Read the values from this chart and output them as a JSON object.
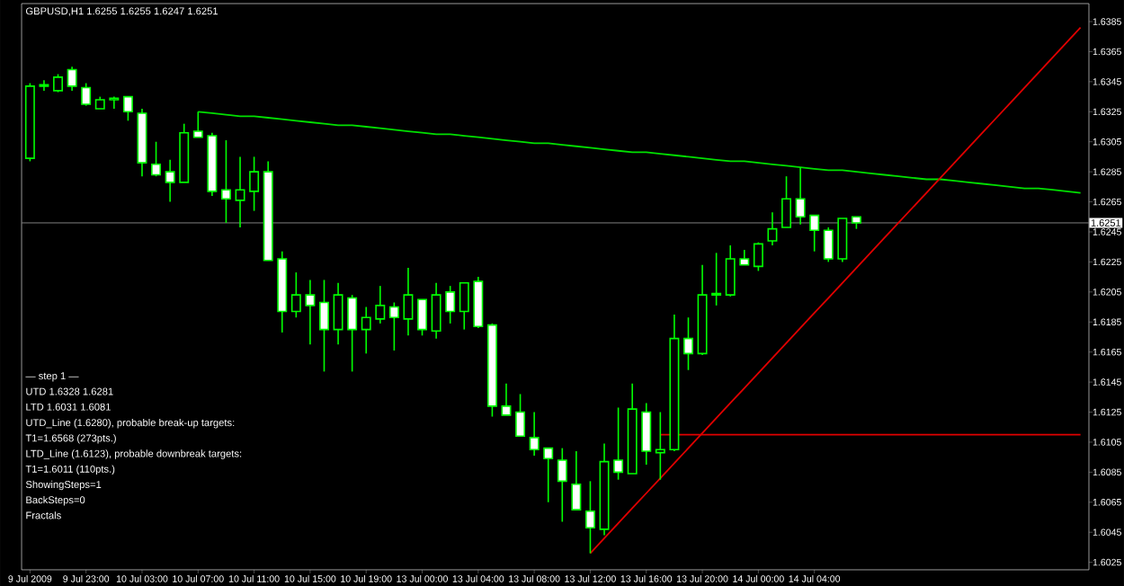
{
  "chart_data": {
    "type": "candlestick",
    "title": "GBPUSD,H1  1.6255 1.6255 1.6247 1.6251",
    "annotations": [
      "— step 1 —",
      "UTD 1.6328 1.6281",
      "LTD 1.6031 1.6081",
      "UTD_Line (1.6280), probable break-up targets:",
      "T1=1.6568 (273pts.)",
      "LTD_Line (1.6123), probable downbreak targets:",
      "T1=1.6011 (110pts.)",
      "ShowingSteps=1",
      "BackSteps=0",
      "Fractals"
    ],
    "categories": [
      "9 Jul 2009",
      null,
      null,
      null,
      "9 Jul 23:00",
      null,
      null,
      null,
      "10 Jul 03:00",
      null,
      null,
      null,
      "10 Jul 07:00",
      null,
      null,
      null,
      "10 Jul 11:00",
      null,
      null,
      null,
      "10 Jul 15:00",
      null,
      null,
      null,
      "10 Jul 19:00",
      null,
      null,
      null,
      "13 Jul 00:00",
      null,
      null,
      null,
      "13 Jul 04:00",
      null,
      null,
      null,
      "13 Jul 08:00",
      null,
      null,
      null,
      "13 Jul 12:00",
      null,
      null,
      null,
      "13 Jul 16:00",
      null,
      null,
      null,
      "13 Jul 20:00",
      null,
      null,
      null,
      "14 Jul 00:00",
      null,
      null,
      null,
      "14 Jul 04:00",
      null,
      null,
      null,
      null,
      null,
      null,
      null,
      null,
      null,
      null,
      null,
      null,
      null,
      null,
      null,
      null,
      null,
      null,
      null
    ],
    "ohlc": [
      [
        1.6294,
        1.6344,
        1.6292,
        1.6342
      ],
      [
        1.6342,
        1.6346,
        1.6339,
        1.6343
      ],
      [
        1.6339,
        1.635,
        1.6338,
        1.6348
      ],
      [
        1.6353,
        1.6355,
        1.6339,
        1.6342
      ],
      [
        1.6341,
        1.6344,
        1.6329,
        1.633
      ],
      [
        1.6327,
        1.6335,
        1.6327,
        1.6333
      ],
      [
        1.6333,
        1.6335,
        1.6327,
        1.6334
      ],
      [
        1.6335,
        1.6335,
        1.6319,
        1.6325
      ],
      [
        1.6324,
        1.6327,
        1.6282,
        1.6291
      ],
      [
        1.629,
        1.6305,
        1.6282,
        1.6283
      ],
      [
        1.6285,
        1.6293,
        1.6265,
        1.6278
      ],
      [
        1.6278,
        1.6317,
        1.6278,
        1.6311
      ],
      [
        1.6312,
        1.6325,
        1.6308,
        1.6308
      ],
      [
        1.6309,
        1.6311,
        1.6269,
        1.6272
      ],
      [
        1.6273,
        1.6306,
        1.6251,
        1.6267
      ],
      [
        1.6266,
        1.6295,
        1.6248,
        1.6273
      ],
      [
        1.6272,
        1.6295,
        1.6259,
        1.6285
      ],
      [
        1.6285,
        1.6292,
        1.6226,
        1.6226
      ],
      [
        1.6227,
        1.6232,
        1.6178,
        1.6192
      ],
      [
        1.6192,
        1.6218,
        1.6188,
        1.6203
      ],
      [
        1.6203,
        1.6213,
        1.617,
        1.6196
      ],
      [
        1.6198,
        1.6213,
        1.6152,
        1.618
      ],
      [
        1.618,
        1.6211,
        1.617,
        1.6203
      ],
      [
        1.6201,
        1.6203,
        1.6152,
        1.618
      ],
      [
        1.618,
        1.6195,
        1.6164,
        1.6188
      ],
      [
        1.6187,
        1.6209,
        1.6184,
        1.6196
      ],
      [
        1.6195,
        1.6198,
        1.6166,
        1.6188
      ],
      [
        1.6187,
        1.6221,
        1.6176,
        1.6203
      ],
      [
        1.62,
        1.62,
        1.6176,
        1.618
      ],
      [
        1.6179,
        1.6211,
        1.6174,
        1.6203
      ],
      [
        1.6205,
        1.6209,
        1.6184,
        1.6192
      ],
      [
        1.6192,
        1.6211,
        1.618,
        1.6211
      ],
      [
        1.6212,
        1.6215,
        1.6181,
        1.6182
      ],
      [
        1.6183,
        1.6184,
        1.6122,
        1.6129
      ],
      [
        1.6129,
        1.6144,
        1.6123,
        1.6123
      ],
      [
        1.6125,
        1.6137,
        1.6109,
        1.6109
      ],
      [
        1.6108,
        1.6125,
        1.6096,
        1.61
      ],
      [
        1.6101,
        1.6101,
        1.6065,
        1.6094
      ],
      [
        1.6093,
        1.6101,
        1.6052,
        1.6079
      ],
      [
        1.6077,
        1.6099,
        1.606,
        1.606
      ],
      [
        1.6059,
        1.6079,
        1.6031,
        1.6048
      ],
      [
        1.6047,
        1.6104,
        1.6043,
        1.6092
      ],
      [
        1.6093,
        1.6128,
        1.608,
        1.6085
      ],
      [
        1.6084,
        1.6144,
        1.6084,
        1.6127
      ],
      [
        1.6125,
        1.6131,
        1.609,
        1.6099
      ],
      [
        1.6098,
        1.6125,
        1.608,
        1.61
      ],
      [
        1.61,
        1.619,
        1.6099,
        1.6174
      ],
      [
        1.6174,
        1.6188,
        1.6153,
        1.6164
      ],
      [
        1.6164,
        1.6223,
        1.6163,
        1.6203
      ],
      [
        1.6203,
        1.6231,
        1.6196,
        1.6204
      ],
      [
        1.6203,
        1.6236,
        1.6202,
        1.6227
      ],
      [
        1.6227,
        1.6233,
        1.6223,
        1.6223
      ],
      [
        1.6222,
        1.6238,
        1.6219,
        1.6237
      ],
      [
        1.6239,
        1.6258,
        1.6236,
        1.6247
      ],
      [
        1.6248,
        1.6282,
        1.6248,
        1.6267
      ],
      [
        1.6267,
        1.6288,
        1.625,
        1.6255
      ],
      [
        1.6256,
        1.6256,
        1.6232,
        1.6246
      ],
      [
        1.6246,
        1.6248,
        1.6225,
        1.6227
      ],
      [
        1.6227,
        1.6254,
        1.6225,
        1.6254
      ],
      [
        1.6255,
        1.6255,
        1.6247,
        1.6251
      ],
      null,
      null,
      null,
      null,
      null,
      null,
      null,
      null,
      null,
      null,
      null,
      null,
      null,
      null,
      null,
      null
    ],
    "color": "#00ff00",
    "colors": [
      "#000000",
      "#000000",
      "#000000",
      "#ffffff",
      "#ffffff",
      "#000000",
      "#000000",
      "#ffffff",
      "#ffffff",
      "#ffffff",
      "#ffffff",
      "#000000",
      "#ffffff",
      "#ffffff",
      "#ffffff",
      "#000000",
      "#000000",
      "#ffffff",
      "#ffffff",
      "#000000",
      "#ffffff",
      "#ffffff",
      "#000000",
      "#ffffff",
      "#000000",
      "#000000",
      "#ffffff",
      "#000000",
      "#ffffff",
      "#000000",
      "#ffffff",
      "#000000",
      "#ffffff",
      "#ffffff",
      "#ffffff",
      "#ffffff",
      "#ffffff",
      "#ffffff",
      "#ffffff",
      "#ffffff",
      "#ffffff",
      "#000000",
      "#ffffff",
      "#000000",
      "#ffffff",
      "#000000",
      "#000000",
      "#ffffff",
      "#000000",
      "#000000",
      "#000000",
      "#ffffff",
      "#000000",
      "#000000",
      "#000000",
      "#ffffff",
      "#ffffff",
      "#ffffff",
      "#000000",
      "#ffffff",
      null,
      null,
      null,
      null,
      null,
      null,
      null,
      null,
      null,
      null,
      null,
      null,
      null,
      null,
      null,
      null
    ],
    "series": [
      {
        "type": "line",
        "color": "#00e000",
        "values": [
          null,
          null,
          null,
          null,
          null,
          null,
          null,
          null,
          null,
          null,
          null,
          null,
          1.6325,
          1.6324,
          1.6323,
          1.6322,
          1.6322,
          1.6321,
          1.632,
          1.6319,
          1.6318,
          1.6317,
          1.6316,
          1.6316,
          1.6315,
          1.6314,
          1.6313,
          1.6312,
          1.6311,
          1.631,
          1.631,
          1.6309,
          1.6308,
          1.6307,
          1.6306,
          1.6305,
          1.6304,
          1.6304,
          1.6303,
          1.6302,
          1.6301,
          1.63,
          1.6299,
          1.6298,
          1.6298,
          1.6297,
          1.6296,
          1.6295,
          1.6294,
          1.6293,
          1.6292,
          1.6292,
          1.6291,
          1.629,
          1.6289,
          1.6288,
          1.6287,
          1.6286,
          1.6286,
          1.6285,
          1.6284,
          1.6283,
          1.6282,
          1.6281,
          1.628,
          1.628,
          1.6279,
          1.6278,
          1.6277,
          1.6276,
          1.6275,
          1.6274,
          1.6274,
          1.6273,
          1.6272,
          1.6271
        ]
      },
      {
        "type": "line",
        "color": "#e00000",
        "values": [
          null,
          null,
          null,
          null,
          null,
          null,
          null,
          null,
          null,
          null,
          null,
          null,
          null,
          null,
          null,
          null,
          null,
          null,
          null,
          null,
          null,
          null,
          null,
          null,
          null,
          null,
          null,
          null,
          null,
          null,
          null,
          null,
          null,
          null,
          null,
          null,
          null,
          null,
          null,
          null,
          1.6031,
          1.6041,
          1.6051,
          1.6061,
          1.6071,
          1.6081,
          1.6091,
          1.6101,
          1.6111,
          1.6121,
          1.6131,
          1.6141,
          1.6151,
          1.6161,
          1.6171,
          1.6181,
          1.6191,
          1.6201,
          1.6211,
          1.6221,
          1.6231,
          1.6241,
          1.6251,
          1.6261,
          1.6271,
          1.6281,
          1.6291,
          1.6301,
          1.6311,
          1.6321,
          1.6331,
          1.6341,
          1.6351,
          1.6361,
          1.6371,
          1.6381
        ]
      },
      {
        "type": "line",
        "color": "#e00000",
        "values": [
          null,
          null,
          null,
          null,
          null,
          null,
          null,
          null,
          null,
          null,
          null,
          null,
          null,
          null,
          null,
          null,
          null,
          null,
          null,
          null,
          null,
          null,
          null,
          null,
          null,
          null,
          null,
          null,
          null,
          null,
          null,
          null,
          null,
          null,
          null,
          null,
          null,
          null,
          null,
          null,
          null,
          null,
          null,
          null,
          null,
          1.611,
          1.611,
          1.611,
          1.611,
          1.611,
          1.611,
          1.611,
          1.611,
          1.611,
          1.611,
          1.611,
          1.611,
          1.611,
          1.611,
          1.611,
          1.611,
          1.611,
          1.611,
          1.611,
          1.611,
          1.611,
          1.611,
          1.611,
          1.611,
          1.611,
          1.611,
          1.611,
          1.611,
          1.611,
          1.611,
          1.611
        ]
      }
    ],
    "ylim": [
      1.602,
      1.6397
    ],
    "yticks": [
      1.6025,
      1.6045,
      1.6065,
      1.6085,
      1.6105,
      1.6125,
      1.6145,
      1.6165,
      1.6185,
      1.6205,
      1.6225,
      1.6245,
      1.6265,
      1.6285,
      1.6305,
      1.6325,
      1.6345,
      1.6365,
      1.6385
    ],
    "ref_lines": [
      {
        "axis": "y",
        "value": 1.6251,
        "label": "1.6251",
        "color": "#808080"
      }
    ]
  }
}
